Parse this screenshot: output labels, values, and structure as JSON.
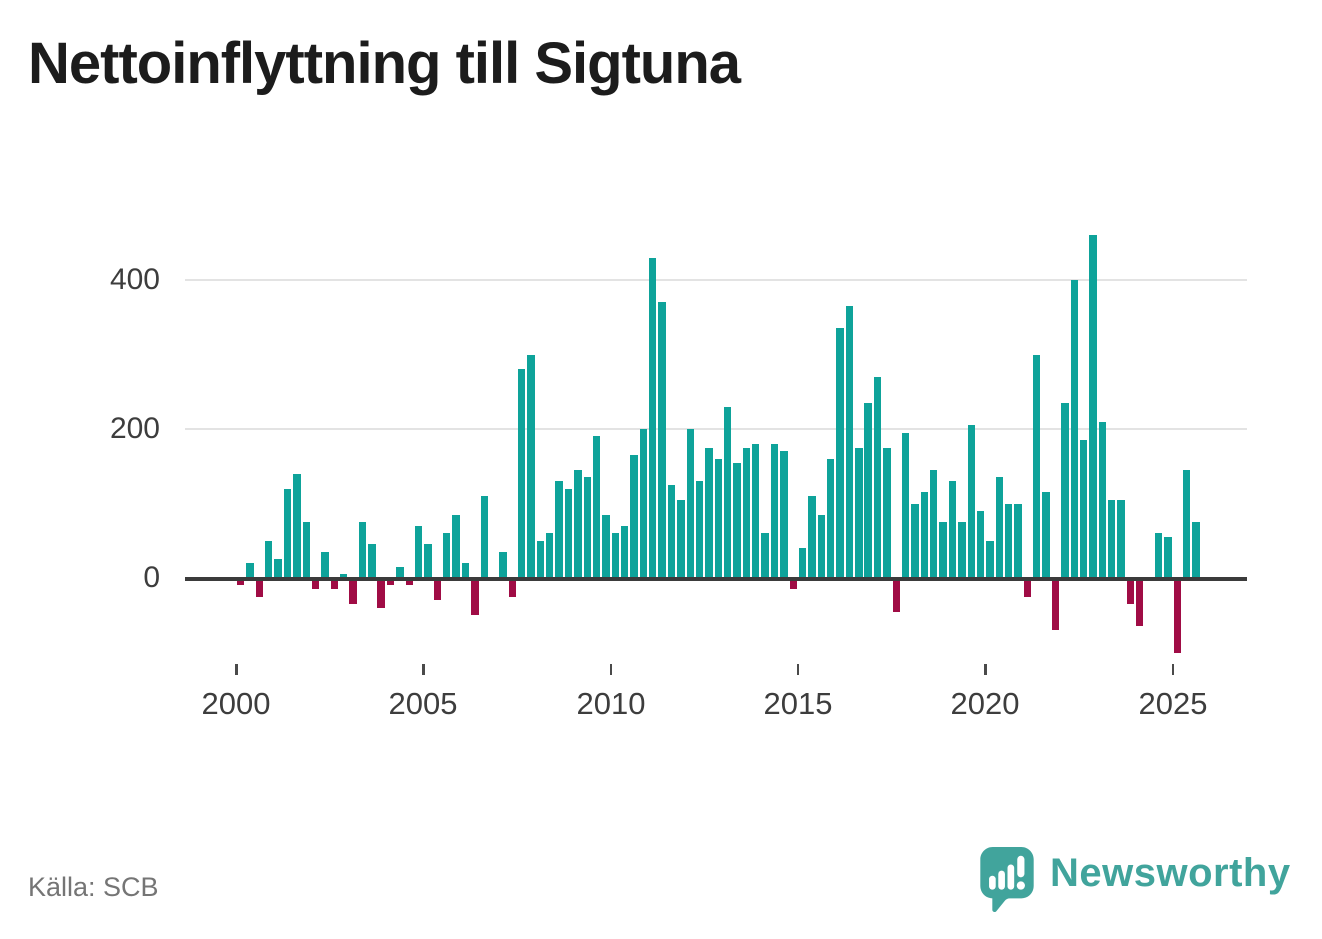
{
  "title": "Nettoinflyttning till Sigtuna",
  "source": "Källa: SCB",
  "logo": {
    "text": "Newsworthy"
  },
  "colors": {
    "positive": "#0ea39a",
    "negative": "#a00c45",
    "grid": "#e3e3e3",
    "axis_line": "#3b3b3b",
    "axis_text": "#3d3d3d",
    "title_text": "#1c1c1c",
    "source_text": "#757575",
    "logo_teal": "#41a49c"
  },
  "chart_data": {
    "type": "bar",
    "title": "Nettoinflyttning till Sigtuna",
    "xlabel": "",
    "ylabel": "",
    "frequency": "quarterly",
    "start": "2000Q1",
    "end": "2025Q3",
    "y_ticks": [
      0,
      200,
      400
    ],
    "y_tick_labels": [
      "0",
      "200",
      "400"
    ],
    "x_tick_labels": [
      "2000",
      "2005",
      "2010",
      "2015",
      "2020",
      "2025"
    ],
    "ylim": [
      -120,
      470
    ],
    "grid": true,
    "legend": false,
    "values": [
      -10,
      20,
      -25,
      50,
      25,
      120,
      140,
      75,
      -15,
      35,
      -15,
      5,
      -35,
      75,
      45,
      -40,
      -10,
      15,
      -10,
      70,
      45,
      -30,
      60,
      85,
      20,
      -50,
      110,
      0,
      35,
      -25,
      280,
      300,
      50,
      60,
      130,
      120,
      145,
      135,
      190,
      85,
      60,
      70,
      165,
      200,
      430,
      370,
      125,
      105,
      200,
      130,
      175,
      160,
      230,
      155,
      175,
      180,
      60,
      180,
      170,
      -15,
      40,
      110,
      85,
      160,
      335,
      365,
      175,
      235,
      270,
      175,
      -45,
      195,
      100,
      115,
      145,
      75,
      130,
      75,
      205,
      90,
      50,
      135,
      100,
      100,
      -25,
      300,
      115,
      -70,
      235,
      400,
      185,
      460,
      210,
      105,
      105,
      -35,
      -65,
      0,
      60,
      55,
      -100,
      145,
      75
    ]
  }
}
